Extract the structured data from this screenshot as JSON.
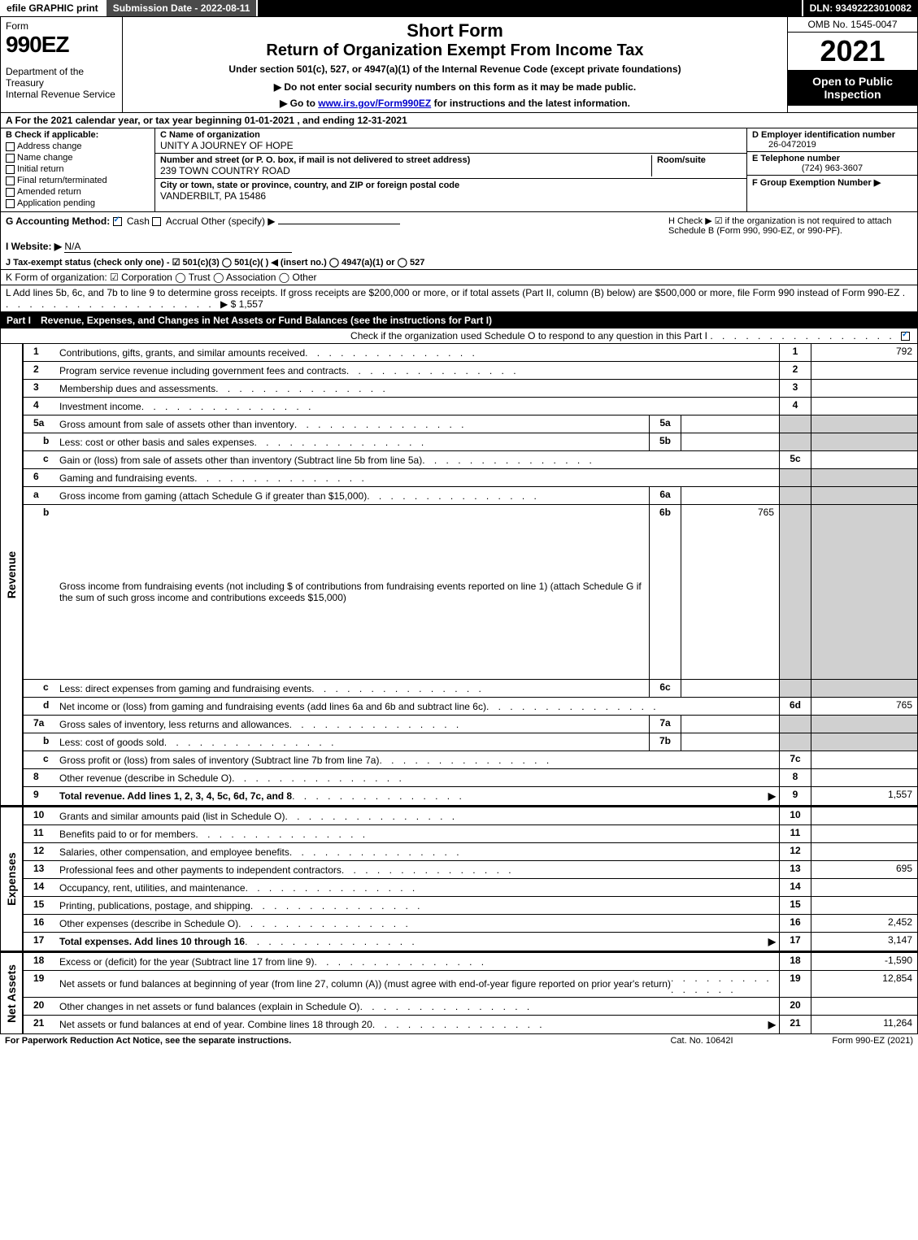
{
  "top": {
    "efile": "efile GRAPHIC print",
    "submission": "Submission Date - 2022-08-11",
    "dln": "DLN: 93492223010082"
  },
  "header": {
    "form_word": "Form",
    "form_num": "990EZ",
    "dept": "Department of the Treasury\nInternal Revenue Service",
    "short": "Short Form",
    "title2": "Return of Organization Exempt From Income Tax",
    "subtitle": "Under section 501(c), 527, or 4947(a)(1) of the Internal Revenue Code (except private foundations)",
    "note1": "▶ Do not enter social security numbers on this form as it may be made public.",
    "note2_pre": "▶ Go to ",
    "note2_link": "www.irs.gov/Form990EZ",
    "note2_post": " for instructions and the latest information.",
    "omb": "OMB No. 1545-0047",
    "year": "2021",
    "open": "Open to Public Inspection"
  },
  "a_row": "A  For the 2021 calendar year, or tax year beginning 01-01-2021 , and ending 12-31-2021",
  "b": {
    "label": "B  Check if applicable:",
    "items": [
      "Address change",
      "Name change",
      "Initial return",
      "Final return/terminated",
      "Amended return",
      "Application pending"
    ]
  },
  "c": {
    "name_lbl": "C Name of organization",
    "name": "UNITY A JOURNEY OF HOPE",
    "street_lbl": "Number and street (or P. O. box, if mail is not delivered to street address)",
    "room_lbl": "Room/suite",
    "street": "239 TOWN COUNTRY ROAD",
    "city_lbl": "City or town, state or province, country, and ZIP or foreign postal code",
    "city": "VANDERBILT, PA  15486"
  },
  "d": {
    "ein_lbl": "D Employer identification number",
    "ein": "26-0472019",
    "phone_lbl": "E Telephone number",
    "phone": "(724) 963-3607",
    "group_lbl": "F Group Exemption Number  ▶"
  },
  "g": {
    "label": "G Accounting Method:",
    "cash": "Cash",
    "accrual": "Accrual",
    "other": "Other (specify) ▶"
  },
  "h": "H  Check ▶ ☑ if the organization is not required to attach Schedule B (Form 990, 990-EZ, or 990-PF).",
  "i": {
    "label": "I Website: ▶",
    "value": "N/A"
  },
  "j": "J Tax-exempt status (check only one) - ☑ 501(c)(3)  ◯ 501(c)(  ) ◀ (insert no.)  ◯ 4947(a)(1) or  ◯ 527",
  "k": "K Form of organization:  ☑ Corporation  ◯ Trust  ◯ Association  ◯ Other",
  "l": {
    "text": "L Add lines 5b, 6c, and 7b to line 9 to determine gross receipts. If gross receipts are $200,000 or more, or if total assets (Part II, column (B) below) are $500,000 or more, file Form 990 instead of Form 990-EZ",
    "amount": "▶ $ 1,557"
  },
  "part1": {
    "label": "Part I",
    "title": "Revenue, Expenses, and Changes in Net Assets or Fund Balances (see the instructions for Part I)",
    "check": "Check if the organization used Schedule O to respond to any question in this Part I"
  },
  "sections": {
    "revenue": "Revenue",
    "expenses": "Expenses",
    "netassets": "Net Assets"
  },
  "lines": {
    "l1": {
      "n": "1",
      "d": "Contributions, gifts, grants, and similar amounts received",
      "rn": "1",
      "v": "792"
    },
    "l2": {
      "n": "2",
      "d": "Program service revenue including government fees and contracts",
      "rn": "2",
      "v": ""
    },
    "l3": {
      "n": "3",
      "d": "Membership dues and assessments",
      "rn": "3",
      "v": ""
    },
    "l4": {
      "n": "4",
      "d": "Investment income",
      "rn": "4",
      "v": ""
    },
    "l5a": {
      "n": "5a",
      "d": "Gross amount from sale of assets other than inventory",
      "in": "5a",
      "iv": ""
    },
    "l5b": {
      "n": "b",
      "d": "Less: cost or other basis and sales expenses",
      "in": "5b",
      "iv": ""
    },
    "l5c": {
      "n": "c",
      "d": "Gain or (loss) from sale of assets other than inventory (Subtract line 5b from line 5a)",
      "rn": "5c",
      "v": ""
    },
    "l6": {
      "n": "6",
      "d": "Gaming and fundraising events"
    },
    "l6a": {
      "n": "a",
      "d": "Gross income from gaming (attach Schedule G if greater than $15,000)",
      "in": "6a",
      "iv": ""
    },
    "l6b": {
      "n": "b",
      "d": "Gross income from fundraising events (not including $                    of contributions from fundraising events reported on line 1) (attach Schedule G if the sum of such gross income and contributions exceeds $15,000)",
      "in": "6b",
      "iv": "765"
    },
    "l6c": {
      "n": "c",
      "d": "Less: direct expenses from gaming and fundraising events",
      "in": "6c",
      "iv": ""
    },
    "l6d": {
      "n": "d",
      "d": "Net income or (loss) from gaming and fundraising events (add lines 6a and 6b and subtract line 6c)",
      "rn": "6d",
      "v": "765"
    },
    "l7a": {
      "n": "7a",
      "d": "Gross sales of inventory, less returns and allowances",
      "in": "7a",
      "iv": ""
    },
    "l7b": {
      "n": "b",
      "d": "Less: cost of goods sold",
      "in": "7b",
      "iv": ""
    },
    "l7c": {
      "n": "c",
      "d": "Gross profit or (loss) from sales of inventory (Subtract line 7b from line 7a)",
      "rn": "7c",
      "v": ""
    },
    "l8": {
      "n": "8",
      "d": "Other revenue (describe in Schedule O)",
      "rn": "8",
      "v": ""
    },
    "l9": {
      "n": "9",
      "d": "Total revenue. Add lines 1, 2, 3, 4, 5c, 6d, 7c, and 8",
      "rn": "9",
      "v": "1,557",
      "arrow": true,
      "bold": true
    },
    "l10": {
      "n": "10",
      "d": "Grants and similar amounts paid (list in Schedule O)",
      "rn": "10",
      "v": ""
    },
    "l11": {
      "n": "11",
      "d": "Benefits paid to or for members",
      "rn": "11",
      "v": ""
    },
    "l12": {
      "n": "12",
      "d": "Salaries, other compensation, and employee benefits",
      "rn": "12",
      "v": ""
    },
    "l13": {
      "n": "13",
      "d": "Professional fees and other payments to independent contractors",
      "rn": "13",
      "v": "695"
    },
    "l14": {
      "n": "14",
      "d": "Occupancy, rent, utilities, and maintenance",
      "rn": "14",
      "v": ""
    },
    "l15": {
      "n": "15",
      "d": "Printing, publications, postage, and shipping",
      "rn": "15",
      "v": ""
    },
    "l16": {
      "n": "16",
      "d": "Other expenses (describe in Schedule O)",
      "rn": "16",
      "v": "2,452"
    },
    "l17": {
      "n": "17",
      "d": "Total expenses. Add lines 10 through 16",
      "rn": "17",
      "v": "3,147",
      "arrow": true,
      "bold": true
    },
    "l18": {
      "n": "18",
      "d": "Excess or (deficit) for the year (Subtract line 17 from line 9)",
      "rn": "18",
      "v": "-1,590"
    },
    "l19": {
      "n": "19",
      "d": "Net assets or fund balances at beginning of year (from line 27, column (A)) (must agree with end-of-year figure reported on prior year's return)",
      "rn": "19",
      "v": "12,854"
    },
    "l20": {
      "n": "20",
      "d": "Other changes in net assets or fund balances (explain in Schedule O)",
      "rn": "20",
      "v": ""
    },
    "l21": {
      "n": "21",
      "d": "Net assets or fund balances at end of year. Combine lines 18 through 20",
      "rn": "21",
      "v": "11,264",
      "arrow": true
    }
  },
  "footer": {
    "left": "For Paperwork Reduction Act Notice, see the separate instructions.",
    "center": "Cat. No. 10642I",
    "right": "Form 990-EZ (2021)"
  }
}
